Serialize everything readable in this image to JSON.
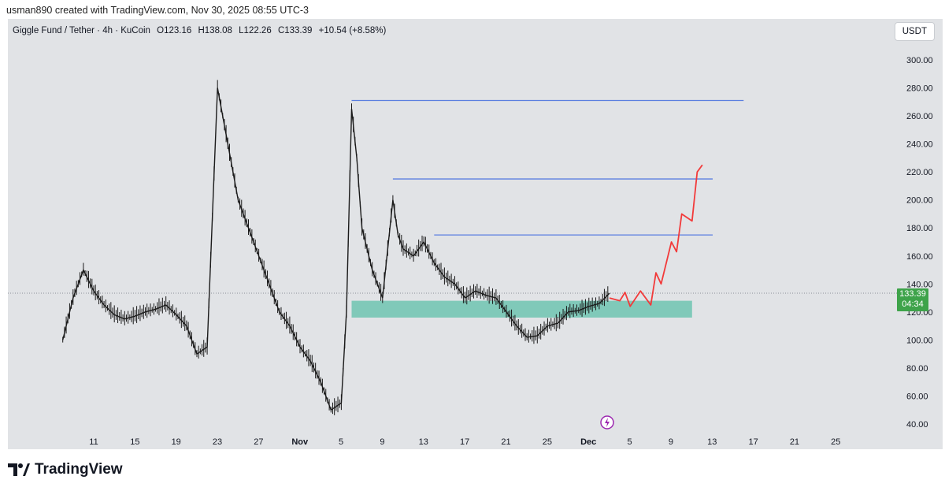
{
  "header": {
    "caption": "usman890 created with TradingView.com, Nov 30, 2025 08:55 UTC-3"
  },
  "symbol": {
    "name": "Giggle Fund / Tether · 4h · KuCoin",
    "open": "O123.16",
    "high": "H138.08",
    "low": "L122.26",
    "close": "C133.39",
    "change": "+10.54 (+8.58%)"
  },
  "currency_button": "USDT",
  "price_tag": {
    "price": "133.39",
    "countdown": "04:34"
  },
  "footer": {
    "brand": "TradingView"
  },
  "colors": {
    "background": "#e1e3e6",
    "candle": "#1a1a1a",
    "level_line": "#5b7fe0",
    "zone": "#6fc4b0",
    "projection": "#f23a3a",
    "price_tag": "#3ea34a"
  },
  "chart_data": {
    "type": "line",
    "ylim": [
      40,
      300
    ],
    "y_ticks": [
      "300.00",
      "280.00",
      "260.00",
      "240.00",
      "220.00",
      "200.00",
      "180.00",
      "160.00",
      "140.00",
      "120.00",
      "100.00",
      "80.00",
      "60.00",
      "40.00"
    ],
    "x_ticks": [
      "11",
      "15",
      "19",
      "23",
      "27",
      "Nov",
      "5",
      "9",
      "13",
      "17",
      "21",
      "25",
      "Dec",
      "5",
      "9",
      "13",
      "17",
      "21",
      "25"
    ],
    "price_series": {
      "x": [
        "Oct 8",
        "Oct 9",
        "Oct 10",
        "Oct 11",
        "Oct 12",
        "Oct 13",
        "Oct 14",
        "Oct 15",
        "Oct 16",
        "Oct 17",
        "Oct 18",
        "Oct 19",
        "Oct 20",
        "Oct 21",
        "Oct 22",
        "Oct 23",
        "Oct 24",
        "Oct 24 12h",
        "Oct 25",
        "Oct 26",
        "Oct 27",
        "Oct 28",
        "Oct 29",
        "Oct 30",
        "Oct 31",
        "Nov 1",
        "Nov 2",
        "Nov 3",
        "Nov 4",
        "Nov 4 12h",
        "Nov 5",
        "Nov 5 12h",
        "Nov 6",
        "Nov 7",
        "Nov 8",
        "Nov 9",
        "Nov 9 12h",
        "Nov 10",
        "Nov 11",
        "Nov 12",
        "Nov 13",
        "Nov 14",
        "Nov 15",
        "Nov 16",
        "Nov 17",
        "Nov 18",
        "Nov 19",
        "Nov 20",
        "Nov 21",
        "Nov 22",
        "Nov 23",
        "Nov 24",
        "Nov 25",
        "Nov 26",
        "Nov 27",
        "Nov 28",
        "Nov 29",
        "Nov 30"
      ],
      "y": [
        100,
        130,
        150,
        135,
        125,
        118,
        115,
        117,
        120,
        122,
        125,
        118,
        110,
        90,
        95,
        280,
        240,
        220,
        200,
        180,
        160,
        140,
        120,
        110,
        95,
        85,
        70,
        50,
        55,
        120,
        265,
        230,
        180,
        150,
        130,
        200,
        175,
        165,
        160,
        170,
        155,
        145,
        140,
        130,
        135,
        132,
        130,
        120,
        110,
        102,
        103,
        110,
        112,
        120,
        121,
        124,
        126,
        133.39
      ]
    },
    "horizontal_levels": [
      {
        "price": 271,
        "from": "Nov 5",
        "to": "Dec 13"
      },
      {
        "price": 215,
        "from": "Nov 9",
        "to": "Dec 10"
      },
      {
        "price": 175,
        "from": "Nov 13",
        "to": "Dec 10"
      }
    ],
    "support_zone": {
      "top": 128,
      "bottom": 116,
      "from": "Nov 5",
      "to": "Dec 8"
    },
    "projection": {
      "x": [
        "Nov 30",
        "Dec 1",
        "Dec 1 12h",
        "Dec 2",
        "Dec 3",
        "Dec 4",
        "Dec 4 12h",
        "Dec 5",
        "Dec 6",
        "Dec 6 12h",
        "Dec 7",
        "Dec 8",
        "Dec 8 12h",
        "Dec 9"
      ],
      "y": [
        130,
        128,
        134,
        124,
        135,
        125,
        148,
        140,
        170,
        163,
        190,
        185,
        220,
        225
      ]
    }
  }
}
